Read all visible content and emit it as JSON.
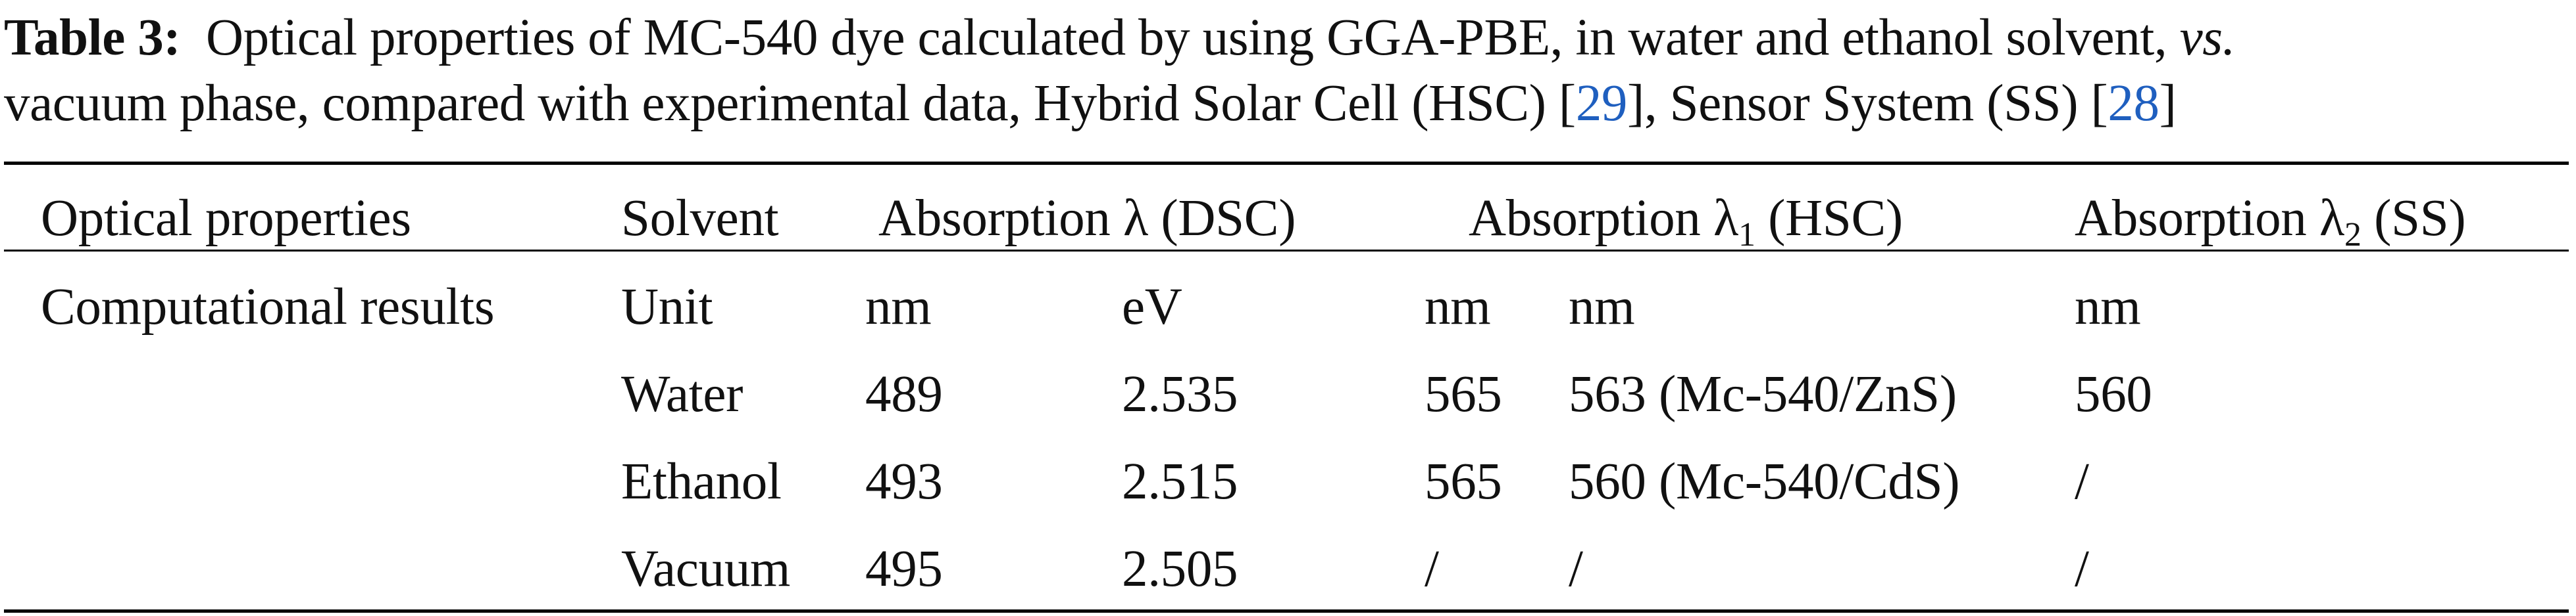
{
  "caption": {
    "label": "Table 3:",
    "text_1": "Optical properties of MC-540 dye calculated by using GGA-PBE, in water and ethanol solvent, ",
    "vs": "vs.",
    "text_2": "vacuum phase, compared with experimental data, Hybrid Solar Cell (HSC) [",
    "ref_hsc": "29",
    "text_3": "], Sensor System (SS) [",
    "ref_ss": "28",
    "text_4": "]"
  },
  "table": {
    "headers": {
      "optical_properties": "Optical properties",
      "solvent": "Solvent",
      "abs_dsc": "Absorption λ (DSC)",
      "abs_hsc_prefix": "Absorption λ",
      "abs_hsc_sub": "1",
      "abs_hsc_suffix": " (HSC)",
      "abs_ss_prefix": "Absorption λ",
      "abs_ss_sub": "2",
      "abs_ss_suffix": " (SS)"
    },
    "row_group_label": "Computational results",
    "rows": [
      {
        "solvent": "Unit",
        "dsc_nm": "nm",
        "dsc_ev": "eV",
        "hsc_nm": "nm",
        "hsc_ref": "nm",
        "ss": "nm"
      },
      {
        "solvent": "Water",
        "dsc_nm": "489",
        "dsc_ev": "2.535",
        "hsc_nm": "565",
        "hsc_ref": "563 (Mc-540/ZnS)",
        "ss": "560"
      },
      {
        "solvent": "Ethanol",
        "dsc_nm": "493",
        "dsc_ev": "2.515",
        "hsc_nm": "565",
        "hsc_ref": "560 (Mc-540/CdS)",
        "ss": "/"
      },
      {
        "solvent": "Vacuum",
        "dsc_nm": "495",
        "dsc_ev": "2.505",
        "hsc_nm": "/",
        "hsc_ref": "/",
        "ss": "/"
      }
    ]
  }
}
